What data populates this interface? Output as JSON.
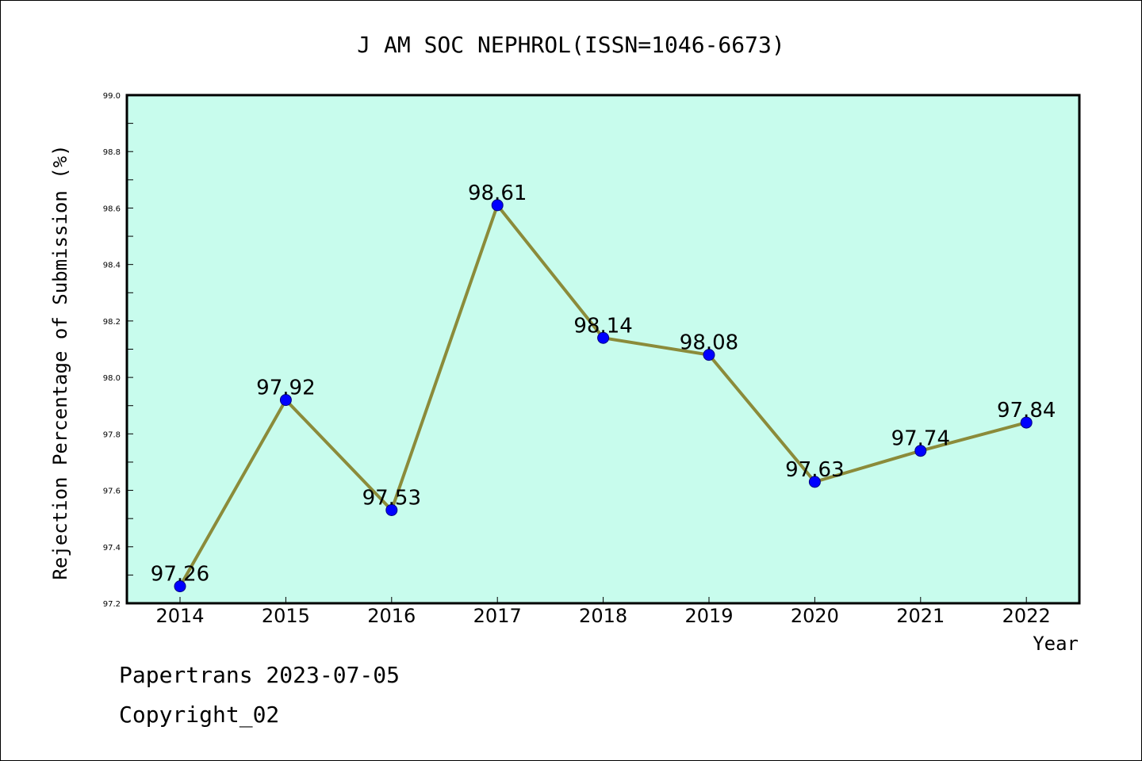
{
  "chart_data": {
    "type": "line",
    "title": "J AM SOC NEPHROL(ISSN=1046-6673)",
    "xlabel": "Year",
    "ylabel": "Rejection Percentage of Submission (%)",
    "categories": [
      "2014",
      "2015",
      "2016",
      "2017",
      "2018",
      "2019",
      "2020",
      "2021",
      "2022"
    ],
    "values": [
      97.26,
      97.92,
      97.53,
      98.61,
      98.14,
      98.08,
      97.63,
      97.74,
      97.84
    ],
    "data_labels": [
      "97.26",
      "97.92",
      "97.53",
      "98.61",
      "98.14",
      "98.08",
      "97.63",
      "97.74",
      "97.84"
    ],
    "ylim": [
      97.2,
      99.0
    ],
    "yticks": [
      "97.2",
      "97.4",
      "97.6",
      "97.8",
      "98.0",
      "98.2",
      "98.4",
      "98.6",
      "98.8",
      "99.0"
    ],
    "grid": false,
    "legend": "none",
    "colors": {
      "plot_background": "#c8fced",
      "line": "#8b8b3a",
      "marker": "#0000ff",
      "marker_edge": "#000080"
    }
  },
  "footer": {
    "date_text": "Papertrans 2023-07-05",
    "copyright_text": "Copyright_02"
  }
}
